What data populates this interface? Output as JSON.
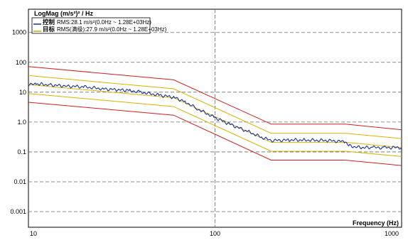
{
  "chart_data": {
    "type": "line",
    "ylabel": "LogMag (m/s²)² / Hz",
    "xlabel": "Frequency (Hz)",
    "xscale": "log",
    "yscale": "log",
    "xlim": [
      10,
      1000
    ],
    "ylim": [
      0.0003,
      6000
    ],
    "grid": true,
    "x_ticks": [
      {
        "value": 10,
        "label": "10"
      },
      {
        "value": 100,
        "label": "100"
      },
      {
        "value": 1000,
        "label": "1000"
      }
    ],
    "y_ticks": [
      {
        "value": 1000,
        "label": "1000"
      },
      {
        "value": 100,
        "label": "100"
      },
      {
        "value": 10,
        "label": "10"
      },
      {
        "value": 1,
        "label": "1.0"
      },
      {
        "value": 0.1,
        "label": "0.1"
      },
      {
        "value": 0.01,
        "label": "0.01"
      },
      {
        "value": 0.001,
        "label": "0.001"
      }
    ],
    "legend": {
      "placement": "top-left",
      "entries": [
        {
          "key": "控制",
          "text": "RMS:28.1 m/s²(0.0Hz ~ 1.28E+03Hz)",
          "color": "#1a2f9a"
        },
        {
          "key": "目标",
          "text": "RMS(满级):27.9 m/s²(0.0Hz ~ 1.28E+03Hz)",
          "color": "#c8a800"
        }
      ]
    },
    "series": [
      {
        "role": "abort-upper",
        "color": "#cc2020",
        "x": [
          10,
          60,
          200,
          500,
          1000
        ],
        "y": [
          72,
          26,
          0.85,
          0.85,
          0.55
        ]
      },
      {
        "role": "alarm-upper",
        "color": "#d6b400",
        "x": [
          10,
          60,
          200,
          500,
          1000
        ],
        "y": [
          36,
          13,
          0.42,
          0.42,
          0.28
        ]
      },
      {
        "role": "reference",
        "color": "#d6b400",
        "x": [
          10,
          60,
          200,
          500,
          1000
        ],
        "y": [
          18,
          6.5,
          0.21,
          0.21,
          0.14
        ]
      },
      {
        "role": "alarm-lower",
        "color": "#d6b400",
        "x": [
          10,
          60,
          200,
          500,
          1000
        ],
        "y": [
          9,
          3.3,
          0.105,
          0.105,
          0.07
        ]
      },
      {
        "role": "abort-lower",
        "color": "#cc2020",
        "x": [
          10,
          60,
          200,
          500,
          1000
        ],
        "y": [
          4.6,
          1.7,
          0.053,
          0.053,
          0.035
        ]
      },
      {
        "role": "control",
        "color": "#1a2f9a",
        "x": [
          10,
          11,
          13,
          16,
          20,
          25,
          30,
          35,
          40,
          50,
          60,
          70,
          80,
          100,
          120,
          150,
          180,
          200,
          250,
          300,
          400,
          500,
          520,
          600,
          700,
          800,
          1000
        ],
        "y": [
          17,
          19,
          17.5,
          16,
          15,
          13,
          12,
          11.5,
          10,
          8,
          6.8,
          4.6,
          2.8,
          1.4,
          0.85,
          0.48,
          0.3,
          0.24,
          0.25,
          0.25,
          0.24,
          0.22,
          0.16,
          0.14,
          0.14,
          0.14,
          0.14
        ]
      }
    ]
  }
}
